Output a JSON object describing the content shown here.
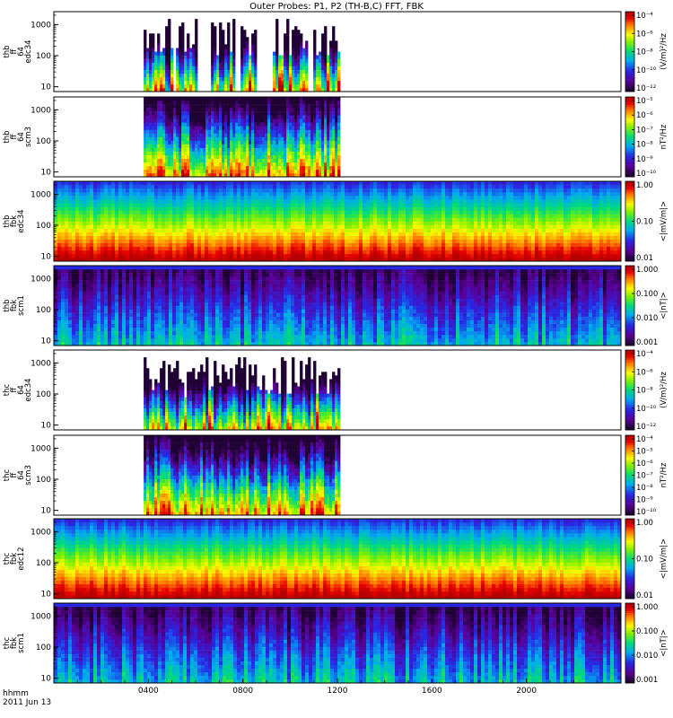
{
  "chart_data": {
    "type": "heatmap",
    "title": "Outer Probes: P1, P2 (TH-B,C) FFT, FBK",
    "x_axis": {
      "label_line1": "hhmm",
      "label_line2": "2011 Jun 13",
      "range_hours": [
        0,
        24
      ],
      "tick_hours": [
        4,
        8,
        12,
        16,
        20
      ],
      "tick_labels": [
        "0400",
        "0800",
        "1200",
        "1600",
        "2000"
      ]
    },
    "panels": [
      {
        "id": "thb-ff64-edc34",
        "ylabel": [
          "thb",
          "ff",
          "64",
          "edc34"
        ],
        "kind": "fft",
        "data_start_hour": 3.8,
        "data_end_hour": 12.1,
        "gaps_hours": [
          [
            5.0,
            5.1
          ],
          [
            6.0,
            6.6
          ],
          [
            7.6,
            7.8
          ],
          [
            8.5,
            9.2
          ],
          [
            10.7,
            10.9
          ]
        ],
        "yticks": [
          "1000",
          "100",
          "10"
        ],
        "cb_unit": "(V/m)²/Hz",
        "cb_ticks": [
          "10⁻⁴",
          "10⁻⁶",
          "10⁻⁸",
          "10⁻¹⁰",
          "10⁻¹²"
        ]
      },
      {
        "id": "thb-ff64-scm3",
        "ylabel": [
          "thb",
          "ff",
          "64",
          "scm3"
        ],
        "kind": "fftscm",
        "data_start_hour": 3.8,
        "data_end_hour": 12.1,
        "gaps_hours": [],
        "yticks": [
          "1000",
          "100",
          "10"
        ],
        "cb_unit": "nT²/Hz",
        "cb_ticks": [
          "10⁻⁵",
          "10⁻⁶",
          "10⁻⁷",
          "10⁻⁸",
          "10⁻⁹",
          "10⁻¹⁰"
        ]
      },
      {
        "id": "thb-fbk-edc34",
        "ylabel": [
          "thb",
          "fbk",
          "edc34"
        ],
        "kind": "fbke",
        "data_start_hour": 0,
        "data_end_hour": 24,
        "gaps_hours": [],
        "yticks": [
          "1000",
          "100",
          "10"
        ],
        "cb_unit": "<|mV/m|>",
        "cb_ticks": [
          "1.00",
          "0.10",
          "0.01"
        ]
      },
      {
        "id": "thb-fbk-scm1",
        "ylabel": [
          "thb",
          "fbk",
          "scm1"
        ],
        "kind": "fbkb",
        "data_start_hour": 0,
        "data_end_hour": 24,
        "gaps_hours": [],
        "yticks": [
          "1000",
          "100",
          "10"
        ],
        "cb_unit": "<|nT|>",
        "cb_ticks": [
          "1.000",
          "0.100",
          "0.010",
          "0.001"
        ]
      },
      {
        "id": "thc-ff64-edc34",
        "ylabel": [
          "thc",
          "ff",
          "64",
          "edc34"
        ],
        "kind": "fft",
        "data_start_hour": 3.8,
        "data_end_hour": 12.1,
        "gaps_hours": [],
        "yticks": [
          "1000",
          "100",
          "10"
        ],
        "cb_unit": "(V/m)²/Hz",
        "cb_ticks": [
          "10⁻⁴",
          "10⁻⁶",
          "10⁻⁸",
          "10⁻¹⁰",
          "10⁻¹²"
        ]
      },
      {
        "id": "thc-ff64-scm3",
        "ylabel": [
          "thc",
          "ff",
          "64",
          "scm3"
        ],
        "kind": "fftscm",
        "data_start_hour": 3.8,
        "data_end_hour": 12.1,
        "gaps_hours": [],
        "yticks": [
          "1000",
          "100",
          "10"
        ],
        "cb_unit": "nT²/Hz",
        "cb_ticks": [
          "10⁻⁴",
          "10⁻⁵",
          "10⁻⁶",
          "10⁻⁷",
          "10⁻⁸",
          "10⁻⁹",
          "10⁻¹⁰"
        ]
      },
      {
        "id": "thc-fbk-edc12",
        "ylabel": [
          "thc",
          "fbk",
          "edc12"
        ],
        "kind": "fbke",
        "data_start_hour": 0,
        "data_end_hour": 24,
        "gaps_hours": [],
        "yticks": [
          "1000",
          "100",
          "10"
        ],
        "cb_unit": "<|mV/m|>",
        "cb_ticks": [
          "1.00",
          "0.10",
          "0.01"
        ]
      },
      {
        "id": "thc-fbk-scm1",
        "ylabel": [
          "thc",
          "fbk",
          "scm1"
        ],
        "kind": "fbkb",
        "data_start_hour": 0,
        "data_end_hour": 24,
        "gaps_hours": [],
        "yticks": [
          "1000",
          "100",
          "10"
        ],
        "cb_unit": "<|nT|>",
        "cb_ticks": [
          "1.000",
          "0.100",
          "0.010",
          "0.001"
        ]
      }
    ]
  }
}
